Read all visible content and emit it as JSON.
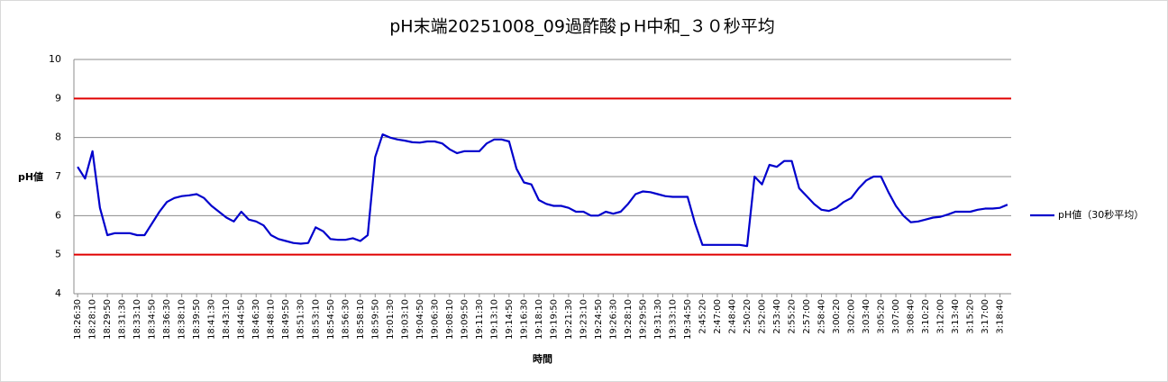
{
  "chart_data": {
    "type": "line",
    "title": "pH末端20251008_09過酢酸ｐH中和_３０秒平均",
    "y_label": "pH値",
    "x_label": "時間",
    "ylim": [
      4,
      10
    ],
    "yticks": [
      4,
      5,
      6,
      7,
      8,
      9,
      10
    ],
    "grid": true,
    "legend": "right",
    "reference_lines": [
      {
        "value": 9,
        "color": "#e00000"
      },
      {
        "value": 5,
        "color": "#e00000"
      }
    ],
    "categories": [
      "18:26:30",
      null,
      "18:28:10",
      null,
      "18:29:50",
      null,
      "18:31:30",
      null,
      "18:33:10",
      null,
      "18:34:50",
      null,
      "18:36:30",
      null,
      "18:38:10",
      null,
      "18:39:50",
      null,
      "18:41:30",
      null,
      "18:43:10",
      null,
      "18:44:50",
      null,
      "18:46:30",
      null,
      "18:48:10",
      null,
      "18:49:50",
      null,
      "18:51:30",
      null,
      "18:53:10",
      null,
      "18:54:50",
      null,
      "18:56:30",
      null,
      "18:58:10",
      null,
      "18:59:50",
      null,
      "19:01:30",
      null,
      "19:03:10",
      null,
      "19:04:50",
      null,
      "19:06:30",
      null,
      "19:08:10",
      null,
      "19:09:50",
      null,
      "19:11:30",
      null,
      "19:13:10",
      null,
      "19:14:50",
      null,
      "19:16:30",
      null,
      "19:18:10",
      null,
      "19:19:50",
      null,
      "19:21:30",
      null,
      "19:23:10",
      null,
      "19:24:50",
      null,
      "19:26:30",
      null,
      "19:28:10",
      null,
      "19:29:50",
      null,
      "19:31:30",
      null,
      "19:33:10",
      null,
      "19:34:50",
      null,
      "2:45:20",
      null,
      "2:47:00",
      null,
      "2:48:40",
      null,
      "2:50:20",
      null,
      "2:52:00",
      null,
      "2:53:40",
      null,
      "2:55:20",
      null,
      "2:57:00",
      null,
      "2:58:40",
      null,
      "3:00:20",
      null,
      "3:02:00",
      null,
      "3:03:40",
      null,
      "3:05:20",
      null,
      "3:07:00",
      null,
      "3:08:40",
      null,
      "3:10:20",
      null,
      "3:12:00",
      null,
      "3:13:40",
      null,
      "3:15:20",
      null,
      "3:17:00",
      null,
      "3:18:40",
      null
    ],
    "series": [
      {
        "name": "pH値（30秒平均）",
        "color": "#0000cc",
        "values": [
          7.25,
          6.95,
          7.65,
          6.2,
          5.5,
          5.55,
          5.55,
          5.55,
          5.5,
          5.5,
          5.8,
          6.1,
          6.35,
          6.45,
          6.5,
          6.52,
          6.55,
          6.45,
          6.25,
          6.1,
          5.95,
          5.85,
          6.1,
          5.9,
          5.85,
          5.75,
          5.5,
          5.4,
          5.35,
          5.3,
          5.28,
          5.3,
          5.7,
          5.6,
          5.4,
          5.38,
          5.38,
          5.42,
          5.35,
          5.5,
          7.5,
          8.08,
          8.0,
          7.95,
          7.92,
          7.88,
          7.87,
          7.9,
          7.9,
          7.85,
          7.7,
          7.6,
          7.65,
          7.65,
          7.65,
          7.85,
          7.95,
          7.95,
          7.9,
          7.2,
          6.85,
          6.8,
          6.4,
          6.3,
          6.25,
          6.25,
          6.2,
          6.1,
          6.1,
          6.0,
          6.0,
          6.1,
          6.05,
          6.1,
          6.3,
          6.55,
          6.62,
          6.6,
          6.55,
          6.5,
          6.48,
          6.48,
          6.48,
          5.8,
          5.25,
          5.25,
          5.25,
          5.25,
          5.25,
          5.25,
          5.22,
          7.0,
          6.8,
          7.3,
          7.25,
          7.4,
          7.4,
          6.7,
          6.5,
          6.3,
          6.15,
          6.12,
          6.2,
          6.35,
          6.45,
          6.7,
          6.9,
          7.0,
          7.0,
          6.6,
          6.25,
          6.0,
          5.83,
          5.85,
          5.9,
          5.95,
          5.97,
          6.03,
          6.1,
          6.1,
          6.1,
          6.15,
          6.18,
          6.18,
          6.2,
          6.28
        ]
      }
    ]
  }
}
